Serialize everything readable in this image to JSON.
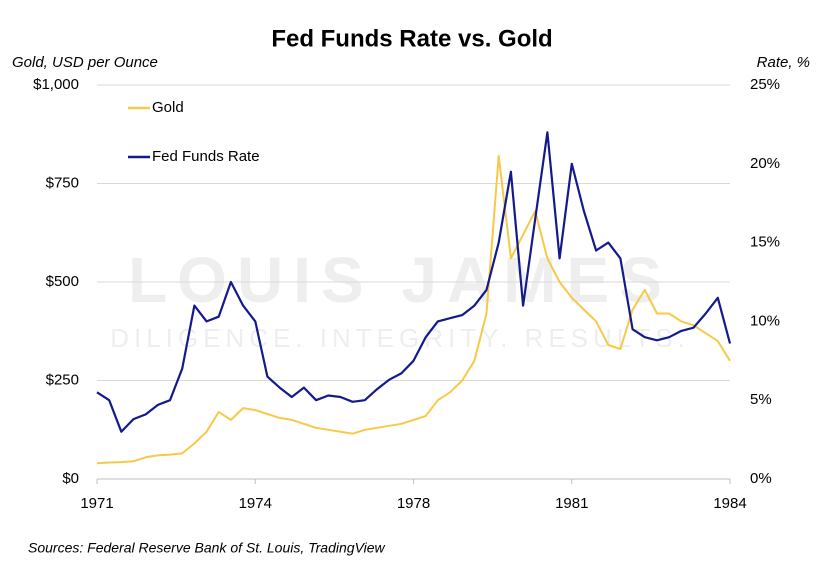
{
  "chart_data": {
    "type": "line",
    "title": "Fed Funds Rate vs. Gold",
    "y_label": "Gold, USD per Ounce",
    "y2_label": "Rate, %",
    "source": "Sources: Federal Reserve Bank of St. Louis, TradingView",
    "watermark": [
      "LOUIS JAMES",
      "DILIGENCE. INTEGRITY. RESULTS."
    ],
    "x": [
      1971,
      1971.25,
      1971.5,
      1971.75,
      1972,
      1972.25,
      1972.5,
      1972.75,
      1973,
      1973.25,
      1973.5,
      1973.75,
      1974,
      1974.25,
      1974.5,
      1974.75,
      1975,
      1975.25,
      1975.5,
      1975.75,
      1976,
      1976.25,
      1976.5,
      1976.75,
      1977,
      1977.25,
      1977.5,
      1977.75,
      1978,
      1978.25,
      1978.5,
      1978.75,
      1979,
      1979.25,
      1979.5,
      1979.75,
      1980,
      1980.25,
      1980.5,
      1980.75,
      1981,
      1981.25,
      1981.5,
      1981.75,
      1982,
      1982.25,
      1982.5,
      1982.75,
      1983,
      1983.25,
      1983.5,
      1983.75,
      1984
    ],
    "series": [
      {
        "name": "Gold",
        "color": "#f7c948",
        "axis": "y",
        "values": [
          40,
          42,
          43,
          45,
          55,
          60,
          62,
          65,
          90,
          120,
          170,
          150,
          180,
          175,
          165,
          155,
          150,
          140,
          130,
          125,
          120,
          115,
          125,
          130,
          135,
          140,
          150,
          160,
          200,
          220,
          250,
          300,
          420,
          820,
          560,
          620,
          680,
          560,
          500,
          460,
          430,
          400,
          340,
          330,
          430,
          480,
          420,
          420,
          400,
          390,
          370,
          350,
          300
        ]
      },
      {
        "name": "Fed Funds Rate",
        "color": "#141a8c",
        "axis": "y2",
        "values": [
          5.5,
          5.0,
          3.0,
          3.8,
          4.1,
          4.7,
          5.0,
          7.0,
          11.0,
          10.0,
          10.3,
          12.5,
          11.0,
          10.0,
          6.5,
          5.8,
          5.2,
          5.8,
          5.0,
          5.3,
          5.2,
          4.9,
          5.0,
          5.7,
          6.3,
          6.7,
          7.5,
          9.0,
          10.0,
          10.2,
          10.4,
          11.0,
          12.0,
          15.0,
          19.5,
          11.0,
          16.5,
          22.0,
          14.0,
          20.0,
          17.0,
          14.5,
          15.0,
          14.0,
          9.5,
          9.0,
          8.8,
          9.0,
          9.4,
          9.6,
          10.5,
          11.5,
          8.6
        ]
      }
    ],
    "xlim": [
      1971,
      1984
    ],
    "xticks": [
      1971,
      {
        "value": 1974.25,
        "label": "1974"
      },
      {
        "value": 1977.5,
        "label": "1978"
      },
      {
        "value": 1980.75,
        "label": "1981"
      },
      1984
    ],
    "ylim": [
      0,
      1000
    ],
    "yticks": [
      {
        "value": 0,
        "label": "$0"
      },
      {
        "value": 250,
        "label": "$250"
      },
      {
        "value": 500,
        "label": "$500"
      },
      {
        "value": 750,
        "label": "$750"
      },
      {
        "value": 1000,
        "label": "$1,000"
      }
    ],
    "y2lim": [
      0,
      25
    ],
    "y2ticks": [
      {
        "value": 0,
        "label": "0%"
      },
      {
        "value": 5,
        "label": "5%"
      },
      {
        "value": 10,
        "label": "10%"
      },
      {
        "value": 15,
        "label": "15%"
      },
      {
        "value": 20,
        "label": "20%"
      },
      {
        "value": 25,
        "label": "25%"
      }
    ],
    "grid": true,
    "legend": "upper-left"
  }
}
